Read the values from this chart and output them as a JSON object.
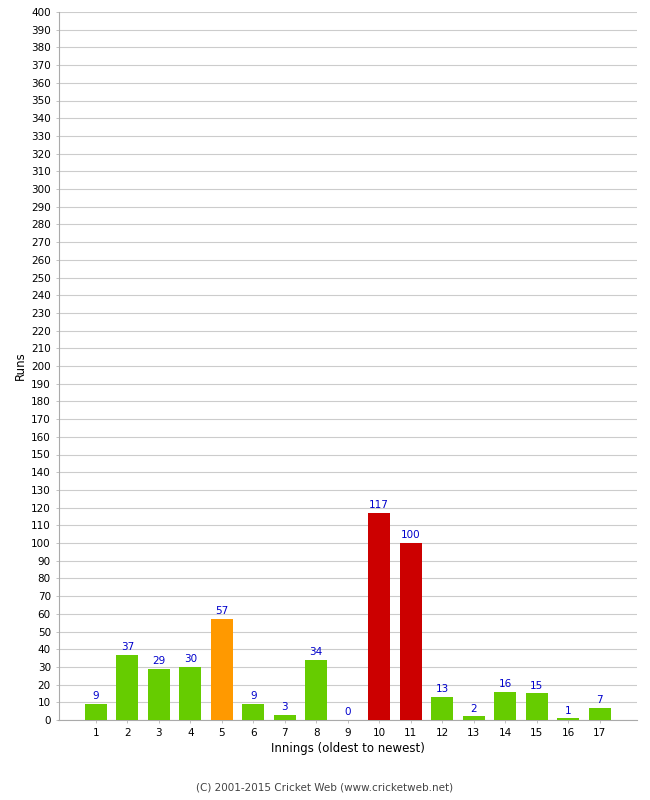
{
  "values": [
    9,
    37,
    29,
    30,
    57,
    9,
    3,
    34,
    0,
    117,
    100,
    13,
    2,
    16,
    15,
    1,
    7
  ],
  "categories": [
    "1",
    "2",
    "3",
    "4",
    "5",
    "6",
    "7",
    "8",
    "9",
    "10",
    "11",
    "12",
    "13",
    "14",
    "15",
    "16",
    "17"
  ],
  "bar_colors": [
    "#66cc00",
    "#66cc00",
    "#66cc00",
    "#66cc00",
    "#ff9900",
    "#66cc00",
    "#66cc00",
    "#66cc00",
    "#66cc00",
    "#cc0000",
    "#cc0000",
    "#66cc00",
    "#66cc00",
    "#66cc00",
    "#66cc00",
    "#66cc00",
    "#66cc00"
  ],
  "xlabel": "Innings (oldest to newest)",
  "ylabel": "Runs",
  "ylim": [
    0,
    400
  ],
  "ytick_step": 10,
  "background_color": "#ffffff",
  "grid_color": "#cccccc",
  "label_color": "#0000cc",
  "footer": "(C) 2001-2015 Cricket Web (www.cricketweb.net)",
  "title": "",
  "bar_width": 0.7,
  "label_fontsize": 7.5,
  "tick_fontsize": 7.5,
  "axis_label_fontsize": 8.5
}
